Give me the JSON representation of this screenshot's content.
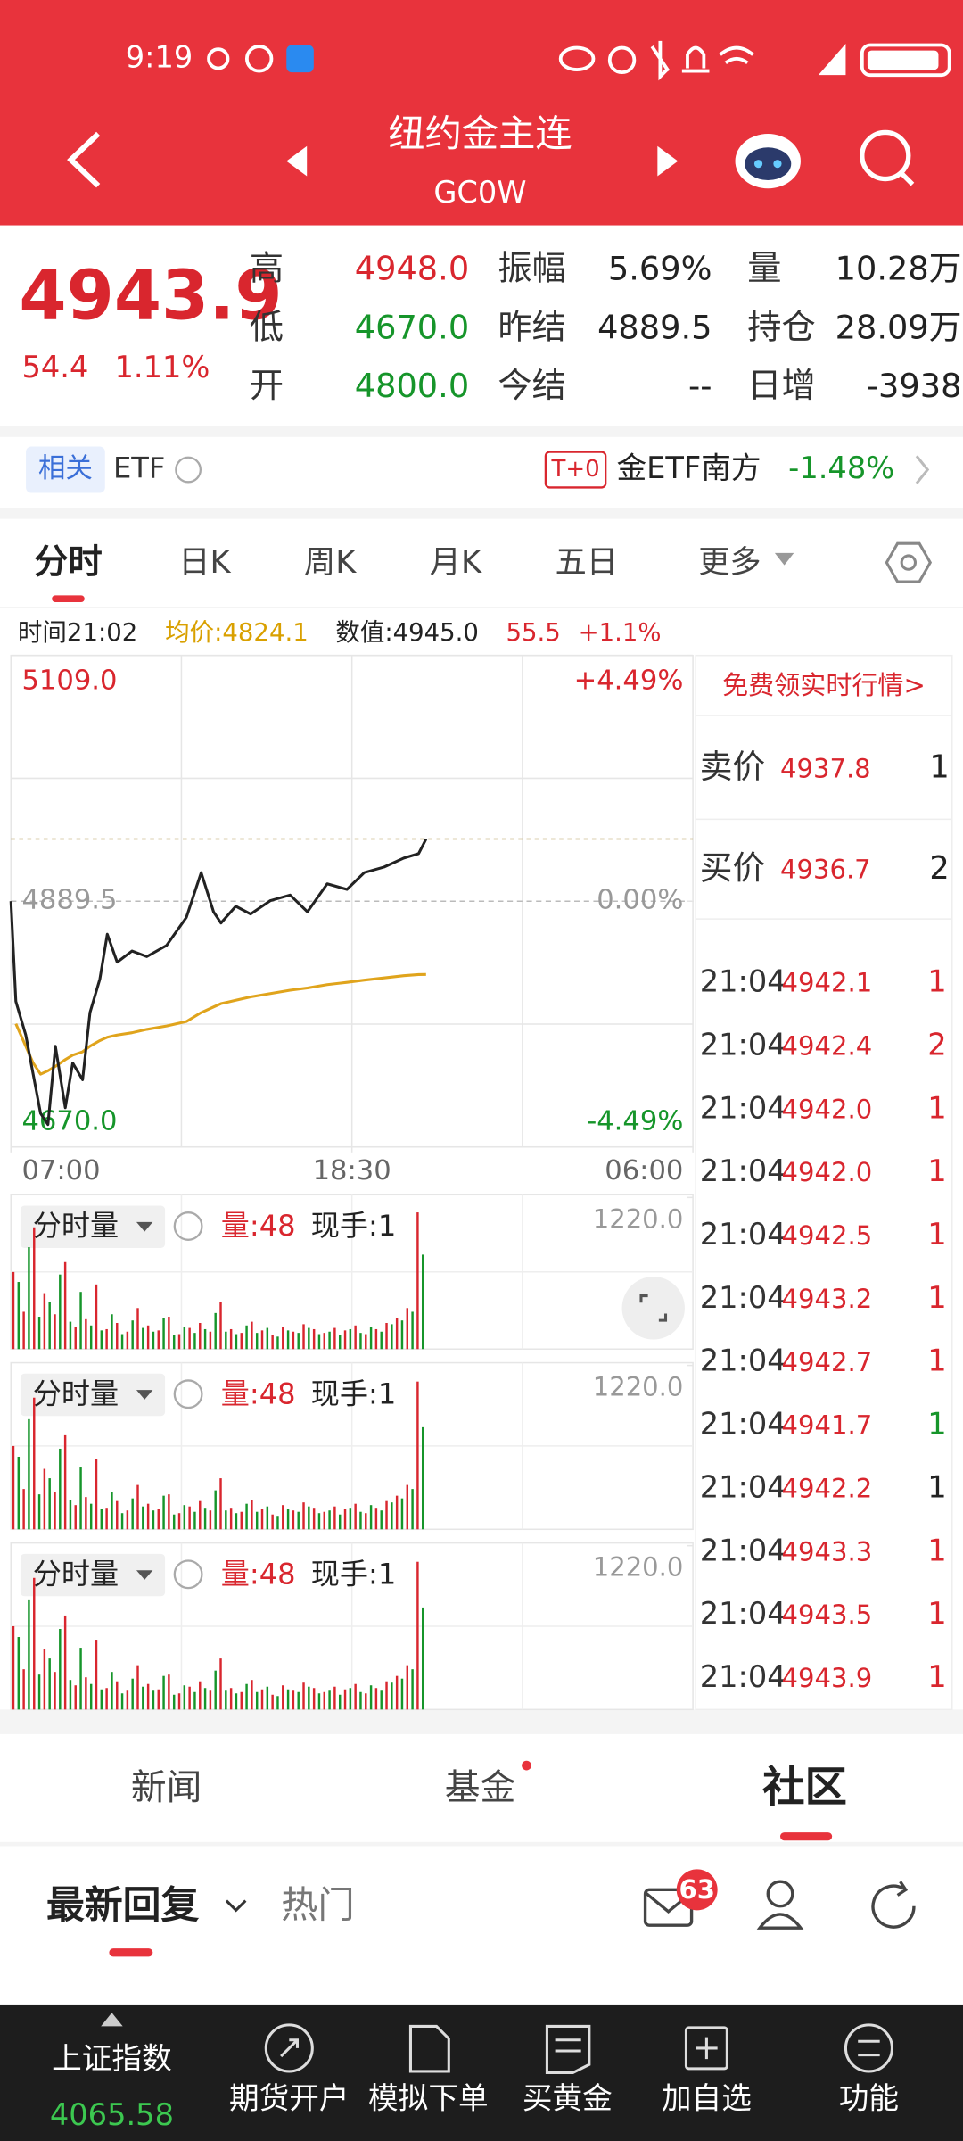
{
  "status_bar": {
    "time": "9:19"
  },
  "header": {
    "title": "纽约金主连",
    "code": "GC0W"
  },
  "quote": {
    "price": "4943.9",
    "change": "54.4",
    "change_pct": "1.11%",
    "stats": [
      [
        {
          "label": "高",
          "value": "4948.0",
          "color": "#d9262e"
        },
        {
          "label": "振幅",
          "value": "5.69%",
          "color": "#222"
        },
        {
          "label": "量",
          "value": "10.28万",
          "color": "#222"
        }
      ],
      [
        {
          "label": "低",
          "value": "4670.0",
          "color": "#16952a"
        },
        {
          "label": "昨结",
          "value": "4889.5",
          "color": "#222"
        },
        {
          "label": "持仓",
          "value": "28.09万",
          "color": "#222"
        }
      ],
      [
        {
          "label": "开",
          "value": "4800.0",
          "color": "#16952a"
        },
        {
          "label": "今结",
          "value": "--",
          "color": "#222"
        },
        {
          "label": "日增",
          "value": "-3938",
          "color": "#222"
        }
      ]
    ]
  },
  "etf": {
    "tag": "相关",
    "label": "ETF",
    "badge": "T+0",
    "name": "金ETF南方",
    "change": "-1.48%"
  },
  "tabs": [
    "分时",
    "日K",
    "周K",
    "月K",
    "五日",
    "更多"
  ],
  "info_line": {
    "time": "时间21:02",
    "avg": "均价:4824.1",
    "value": "数值:4945.0",
    "change": "55.5",
    "pct": "+1.1%"
  },
  "chart_data": [
    {
      "type": "line",
      "xlim": [
        0,
        1380
      ],
      "xticks": [
        {
          "value": 0,
          "label": "07:00"
        },
        {
          "value": 690,
          "label": "18:30"
        },
        {
          "value": 1380,
          "label": "06:00"
        }
      ],
      "ylim": [
        4670,
        5109
      ],
      "yticks": [
        {
          "value": 5109,
          "label": "5109.0"
        },
        {
          "value": 4889.5,
          "label": "4889.5"
        },
        {
          "value": 4670,
          "label": "4670.0"
        }
      ],
      "y2lim": [
        -4.49,
        4.49
      ],
      "y2ticks": [
        {
          "value": 4.49,
          "label": "+4.49%"
        },
        {
          "value": 0,
          "label": "0.00%"
        },
        {
          "value": -4.49,
          "label": "-4.49%"
        }
      ],
      "x": [
        0,
        10,
        30,
        45,
        60,
        75,
        90,
        110,
        125,
        145,
        160,
        180,
        195,
        215,
        245,
        275,
        315,
        355,
        385,
        410,
        425,
        455,
        485,
        525,
        565,
        600,
        640,
        680,
        715,
        755,
        795,
        825,
        840
      ],
      "series": [
        {
          "color": "#222222",
          "values": [
            4889.5,
            4800,
            4770,
            4735,
            4700,
            4690,
            4760,
            4705,
            4745,
            4730,
            4790,
            4820,
            4860,
            4835,
            4845,
            4840,
            4850,
            4875,
            4915,
            4880,
            4870,
            4885,
            4878,
            4890,
            4895,
            4880,
            4905,
            4900,
            4915,
            4920,
            4928,
            4932,
            4945
          ]
        },
        {
          "color": "#e0a41c",
          "values": [
            null,
            4780,
            4760,
            4745,
            4735,
            4738,
            4742,
            4748,
            4752,
            4755,
            4760,
            4765,
            4768,
            4770,
            4772,
            4775,
            4778,
            4782,
            4790,
            4795,
            4798,
            4801,
            4804,
            4807,
            4810,
            4812,
            4815,
            4817,
            4819,
            4821,
            4823,
            4824,
            4824.1
          ]
        }
      ]
    },
    {
      "type": "bar",
      "ylim": [
        0,
        1220
      ],
      "yticks": [
        {
          "value": 1220,
          "label": "1220.0"
        }
      ],
      "series": [
        {
          "color": "#d9262e",
          "values": [
            620,
            300,
            980,
            450,
            280,
            700,
            180,
            240,
            520,
            160,
            210,
            140,
            330,
            190,
            150,
            260,
            120,
            170,
            210,
            140,
            380,
            160,
            130,
            220,
            150,
            110,
            180,
            140,
            200,
            160,
            130,
            170,
            150,
            190,
            120,
            160,
            210,
            250,
            330,
            1100
          ]
        },
        {
          "color": "#16952a",
          "values": [
            540,
            820,
            260,
            380,
            600,
            220,
            460,
            190,
            150,
            280,
            120,
            230,
            170,
            140,
            250,
            110,
            180,
            130,
            160,
            290,
            140,
            120,
            190,
            130,
            170,
            100,
            150,
            130,
            170,
            120,
            140,
            110,
            160,
            130,
            180,
            140,
            200,
            230,
            300,
            760
          ]
        }
      ]
    }
  ],
  "volume_panel": {
    "selector": "分时量",
    "volume": "量:48",
    "hand": "现手:1"
  },
  "order_book": {
    "promo": "免费领实时行情>",
    "quotes": [
      {
        "label": "卖价",
        "price": "4937.8",
        "qty": "1"
      },
      {
        "label": "买价",
        "price": "4936.7",
        "qty": "2"
      }
    ],
    "trades": [
      {
        "time": "21:04",
        "price": "4942.1",
        "qty": "1",
        "color": "#d9262e"
      },
      {
        "time": "21:04",
        "price": "4942.4",
        "qty": "2",
        "color": "#d9262e"
      },
      {
        "time": "21:04",
        "price": "4942.0",
        "qty": "1",
        "color": "#d9262e"
      },
      {
        "time": "21:04",
        "price": "4942.0",
        "qty": "1",
        "color": "#d9262e"
      },
      {
        "time": "21:04",
        "price": "4942.5",
        "qty": "1",
        "color": "#d9262e"
      },
      {
        "time": "21:04",
        "price": "4943.2",
        "qty": "1",
        "color": "#d9262e"
      },
      {
        "time": "21:04",
        "price": "4942.7",
        "qty": "1",
        "color": "#d9262e"
      },
      {
        "time": "21:04",
        "price": "4941.7",
        "qty": "1",
        "color": "#16952a"
      },
      {
        "time": "21:04",
        "price": "4942.2",
        "qty": "1",
        "color": "#222"
      },
      {
        "time": "21:04",
        "price": "4943.3",
        "qty": "1",
        "color": "#d9262e"
      },
      {
        "time": "21:04",
        "price": "4943.5",
        "qty": "1",
        "color": "#d9262e"
      },
      {
        "time": "21:04",
        "price": "4943.9",
        "qty": "1",
        "color": "#d9262e"
      }
    ]
  },
  "section_tabs": [
    "新闻",
    "基金",
    "社区"
  ],
  "reply_bar": {
    "latest": "最新回复",
    "hot": "热门",
    "badge": "63"
  },
  "bottom_nav": {
    "index_name": "上证指数",
    "index_value": "4065.58",
    "items": [
      "期货开户",
      "模拟下单",
      "买黄金",
      "加自选",
      "功能"
    ]
  }
}
